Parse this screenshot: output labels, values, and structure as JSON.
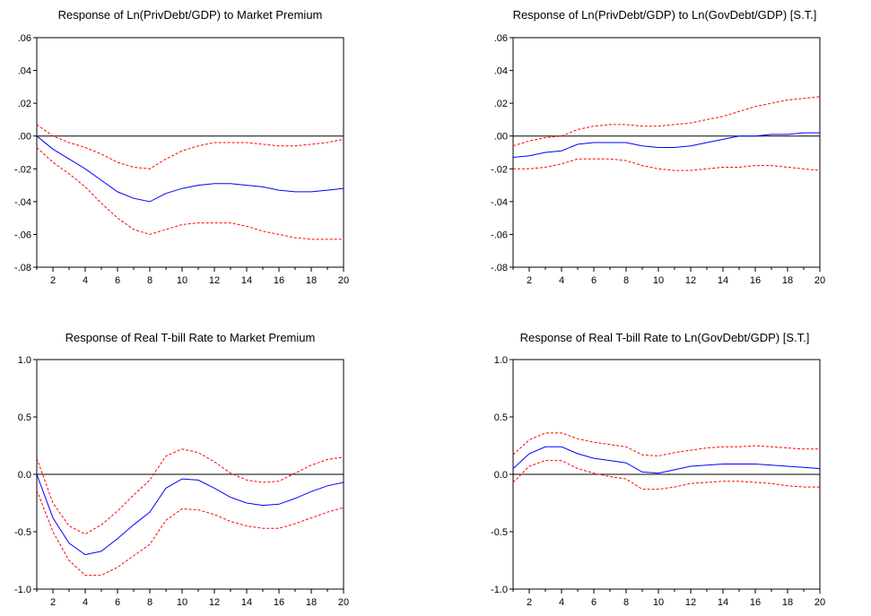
{
  "colors": {
    "response": "#0000ff",
    "band": "#ff0000",
    "zero_line": "#000000",
    "frame": "#000000"
  },
  "chart_data": [
    {
      "type": "line",
      "title": "Response of Ln(PrivDebt/GDP) to Market Premium",
      "x": [
        1,
        2,
        3,
        4,
        5,
        6,
        7,
        8,
        9,
        10,
        11,
        12,
        13,
        14,
        15,
        16,
        17,
        18,
        19,
        20
      ],
      "x_tick_labels": [
        "2",
        "4",
        "6",
        "8",
        "10",
        "12",
        "14",
        "16",
        "18",
        "20"
      ],
      "y_tick_labels": [
        ".06",
        ".04",
        ".02",
        ".00",
        "-.02",
        "-.04",
        "-.06",
        "-.08"
      ],
      "y_tick_values": [
        0.06,
        0.04,
        0.02,
        0.0,
        -0.02,
        -0.04,
        -0.06,
        -0.08
      ],
      "ylim": [
        -0.08,
        0.06
      ],
      "xlim": [
        1,
        20
      ],
      "zero_line": true,
      "series": [
        {
          "role": "response",
          "style": "solid",
          "values": [
            0.0,
            -0.008,
            -0.014,
            -0.02,
            -0.027,
            -0.034,
            -0.038,
            -0.04,
            -0.035,
            -0.032,
            -0.03,
            -0.029,
            -0.029,
            -0.03,
            -0.031,
            -0.033,
            -0.034,
            -0.034,
            -0.033,
            -0.032
          ]
        },
        {
          "role": "upper band",
          "style": "dashed",
          "values": [
            0.007,
            0.0,
            -0.004,
            -0.007,
            -0.011,
            -0.016,
            -0.019,
            -0.02,
            -0.014,
            -0.009,
            -0.006,
            -0.004,
            -0.004,
            -0.004,
            -0.005,
            -0.006,
            -0.006,
            -0.005,
            -0.004,
            -0.002
          ]
        },
        {
          "role": "lower band",
          "style": "dashed",
          "values": [
            -0.007,
            -0.016,
            -0.023,
            -0.031,
            -0.041,
            -0.05,
            -0.057,
            -0.06,
            -0.057,
            -0.054,
            -0.053,
            -0.053,
            -0.053,
            -0.055,
            -0.058,
            -0.06,
            -0.062,
            -0.063,
            -0.063,
            -0.063
          ]
        }
      ]
    },
    {
      "type": "line",
      "title": "Response of Ln(PrivDebt/GDP) to Ln(GovDebt/GDP) [S.T.]",
      "x": [
        1,
        2,
        3,
        4,
        5,
        6,
        7,
        8,
        9,
        10,
        11,
        12,
        13,
        14,
        15,
        16,
        17,
        18,
        19,
        20
      ],
      "x_tick_labels": [
        "2",
        "4",
        "6",
        "8",
        "10",
        "12",
        "14",
        "16",
        "18",
        "20"
      ],
      "y_tick_labels": [
        ".06",
        ".04",
        ".02",
        ".00",
        "-.02",
        "-.04",
        "-.06",
        "-.08"
      ],
      "y_tick_values": [
        0.06,
        0.04,
        0.02,
        0.0,
        -0.02,
        -0.04,
        -0.06,
        -0.08
      ],
      "ylim": [
        -0.08,
        0.06
      ],
      "xlim": [
        1,
        20
      ],
      "zero_line": true,
      "series": [
        {
          "role": "response",
          "style": "solid",
          "values": [
            -0.013,
            -0.012,
            -0.01,
            -0.009,
            -0.005,
            -0.004,
            -0.004,
            -0.004,
            -0.006,
            -0.007,
            -0.007,
            -0.006,
            -0.004,
            -0.002,
            0.0,
            0.0,
            0.001,
            0.001,
            0.002,
            0.002
          ]
        },
        {
          "role": "upper band",
          "style": "dashed",
          "values": [
            -0.006,
            -0.003,
            -0.001,
            0.0,
            0.004,
            0.006,
            0.007,
            0.007,
            0.006,
            0.006,
            0.007,
            0.008,
            0.01,
            0.012,
            0.015,
            0.018,
            0.02,
            0.022,
            0.023,
            0.024
          ]
        },
        {
          "role": "lower band",
          "style": "dashed",
          "values": [
            -0.02,
            -0.02,
            -0.019,
            -0.017,
            -0.014,
            -0.014,
            -0.014,
            -0.015,
            -0.018,
            -0.02,
            -0.021,
            -0.021,
            -0.02,
            -0.019,
            -0.019,
            -0.018,
            -0.018,
            -0.019,
            -0.02,
            -0.021
          ]
        }
      ]
    },
    {
      "type": "line",
      "title": "Response of Real T-bill Rate to Market Premium",
      "x": [
        1,
        2,
        3,
        4,
        5,
        6,
        7,
        8,
        9,
        10,
        11,
        12,
        13,
        14,
        15,
        16,
        17,
        18,
        19,
        20
      ],
      "x_tick_labels": [
        "2",
        "4",
        "6",
        "8",
        "10",
        "12",
        "14",
        "16",
        "18",
        "20"
      ],
      "y_tick_labels": [
        "1.0",
        "0.5",
        "0.0",
        "-0.5",
        "-1.0"
      ],
      "y_tick_values": [
        1.0,
        0.5,
        0.0,
        -0.5,
        -1.0
      ],
      "ylim": [
        -1.0,
        1.0
      ],
      "xlim": [
        1,
        20
      ],
      "zero_line": true,
      "series": [
        {
          "role": "response",
          "style": "solid",
          "values": [
            0.0,
            -0.38,
            -0.6,
            -0.7,
            -0.67,
            -0.56,
            -0.44,
            -0.33,
            -0.12,
            -0.04,
            -0.05,
            -0.12,
            -0.2,
            -0.25,
            -0.27,
            -0.26,
            -0.21,
            -0.15,
            -0.1,
            -0.07
          ]
        },
        {
          "role": "upper band",
          "style": "dashed",
          "values": [
            0.14,
            -0.25,
            -0.45,
            -0.52,
            -0.44,
            -0.32,
            -0.18,
            -0.05,
            0.16,
            0.22,
            0.19,
            0.11,
            0.01,
            -0.05,
            -0.07,
            -0.06,
            0.01,
            0.08,
            0.13,
            0.15
          ]
        },
        {
          "role": "lower band",
          "style": "dashed",
          "values": [
            -0.14,
            -0.5,
            -0.75,
            -0.88,
            -0.88,
            -0.81,
            -0.71,
            -0.61,
            -0.4,
            -0.3,
            -0.31,
            -0.35,
            -0.41,
            -0.45,
            -0.47,
            -0.47,
            -0.43,
            -0.38,
            -0.33,
            -0.29
          ]
        }
      ]
    },
    {
      "type": "line",
      "title": "Response of Real T-bill Rate to Ln(GovDebt/GDP) [S.T.]",
      "x": [
        1,
        2,
        3,
        4,
        5,
        6,
        7,
        8,
        9,
        10,
        11,
        12,
        13,
        14,
        15,
        16,
        17,
        18,
        19,
        20
      ],
      "x_tick_labels": [
        "2",
        "4",
        "6",
        "8",
        "10",
        "12",
        "14",
        "16",
        "18",
        "20"
      ],
      "y_tick_labels": [
        "1.0",
        "0.5",
        "0.0",
        "-0.5",
        "-1.0"
      ],
      "y_tick_values": [
        1.0,
        0.5,
        0.0,
        -0.5,
        -1.0
      ],
      "ylim": [
        -1.0,
        1.0
      ],
      "xlim": [
        1,
        20
      ],
      "zero_line": true,
      "series": [
        {
          "role": "response",
          "style": "solid",
          "values": [
            0.05,
            0.18,
            0.24,
            0.24,
            0.18,
            0.14,
            0.12,
            0.1,
            0.02,
            0.01,
            0.04,
            0.07,
            0.08,
            0.09,
            0.09,
            0.09,
            0.08,
            0.07,
            0.06,
            0.05
          ]
        },
        {
          "role": "upper band",
          "style": "dashed",
          "values": [
            0.17,
            0.3,
            0.36,
            0.36,
            0.31,
            0.28,
            0.26,
            0.24,
            0.17,
            0.16,
            0.19,
            0.21,
            0.23,
            0.24,
            0.24,
            0.25,
            0.24,
            0.23,
            0.22,
            0.22
          ]
        },
        {
          "role": "lower band",
          "style": "dashed",
          "values": [
            -0.07,
            0.07,
            0.12,
            0.12,
            0.05,
            0.01,
            -0.02,
            -0.04,
            -0.13,
            -0.13,
            -0.11,
            -0.08,
            -0.07,
            -0.06,
            -0.06,
            -0.07,
            -0.08,
            -0.1,
            -0.11,
            -0.11
          ]
        }
      ]
    }
  ]
}
